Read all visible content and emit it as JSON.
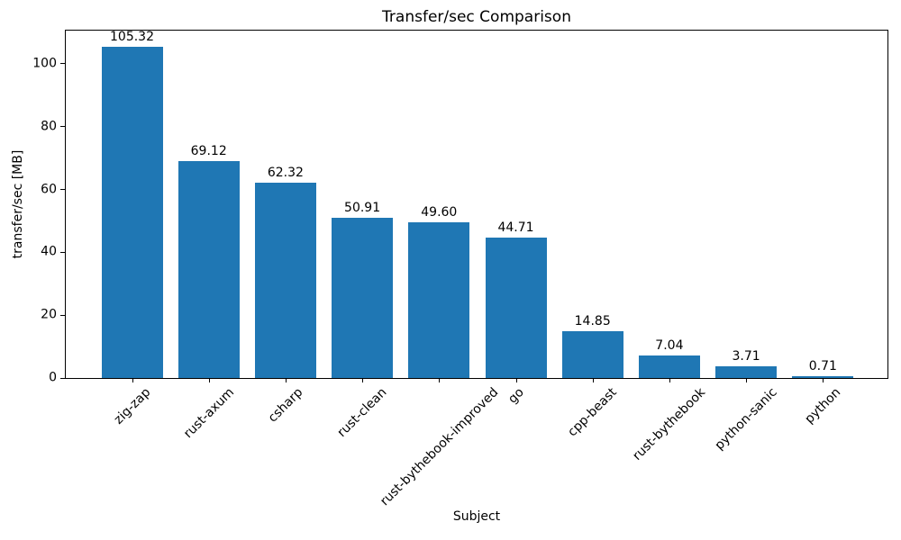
{
  "chart_data": {
    "type": "bar",
    "title": "Transfer/sec Comparison",
    "xlabel": "Subject",
    "ylabel": "transfer/sec [MB]",
    "categories": [
      "zig-zap",
      "rust-axum",
      "csharp",
      "rust-clean",
      "rust-bythebook-improved",
      "go",
      "cpp-beast",
      "rust-bythebook",
      "python-sanic",
      "python"
    ],
    "values": [
      105.32,
      69.12,
      62.32,
      50.91,
      49.6,
      44.71,
      14.85,
      7.04,
      3.71,
      0.71
    ],
    "value_labels": [
      "105.32",
      "69.12",
      "62.32",
      "50.91",
      "49.60",
      "44.71",
      "14.85",
      "7.04",
      "3.71",
      "0.71"
    ],
    "yticks": [
      0,
      20,
      40,
      60,
      80,
      100
    ],
    "ylim": [
      0,
      110.6
    ],
    "bar_color": "#1f77b4",
    "grid": false,
    "legend": false,
    "x_tick_rotation_deg": 45
  }
}
